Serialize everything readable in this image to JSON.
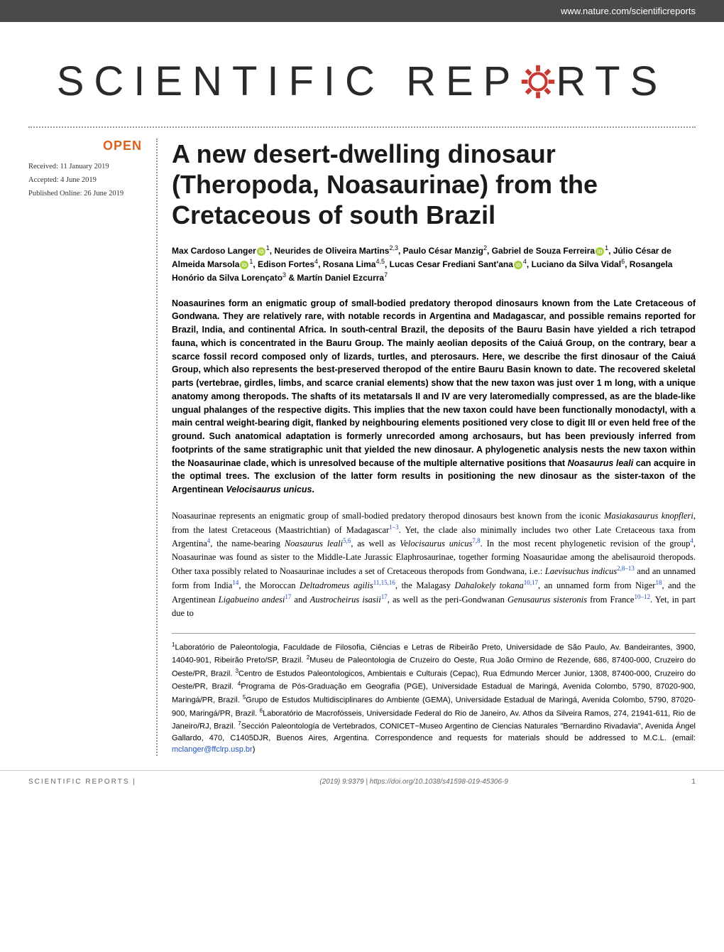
{
  "header": {
    "url": "www.nature.com/scientificreports"
  },
  "journal": {
    "name_part1": "SCIENTIFIC",
    "name_part2": "REP",
    "name_part3": "RTS",
    "gear_color": "#c73831"
  },
  "badge": {
    "open": "OPEN"
  },
  "dates": {
    "received": "Received: 11 January 2019",
    "accepted": "Accepted: 4 June 2019",
    "published": "Published Online: 26 June 2019"
  },
  "title": "A new desert-dwelling dinosaur (Theropoda, Noasaurinae) from the Cretaceous of south Brazil",
  "authors_html": "Max Cardoso Langer{orcid}<sup>1</sup>, Neurides de Oliveira Martins<sup>2,3</sup>, Paulo César Manzig<sup>2</sup>, Gabriel de Souza Ferreira{orcid}<sup>1</sup>, Júlio César de Almeida Marsola{orcid}<sup>1</sup>, Edison Fortes<sup>4</sup>, Rosana Lima<sup>4,5</sup>, Lucas Cesar Frediani Sant'ana{orcid}<sup>4</sup>, Luciano da Silva Vidal<sup>6</sup>, Rosangela Honório da Silva Lorençato<sup>3</sup> & Martín Daniel Ezcurra<sup>7</sup>",
  "abstract": "Noasaurines form an enigmatic group of small-bodied predatory theropod dinosaurs known from the Late Cretaceous of Gondwana. They are relatively rare, with notable records in Argentina and Madagascar, and possible remains reported for Brazil, India, and continental Africa. In south-central Brazil, the deposits of the Bauru Basin have yielded a rich tetrapod fauna, which is concentrated in the Bauru Group. The mainly aeolian deposits of the Caiuá Group, on the contrary, bear a scarce fossil record composed only of lizards, turtles, and pterosaurs. Here, we describe the first dinosaur of the Caiuá Group, which also represents the best-preserved theropod of the entire Bauru Basin known to date. The recovered skeletal parts (vertebrae, girdles, limbs, and scarce cranial elements) show that the new taxon was just over 1 m long, with a unique anatomy among theropods. The shafts of its metatarsals II and IV are very lateromedially compressed, as are the blade-like ungual phalanges of the respective digits. This implies that the new taxon could have been functionally monodactyl, with a main central weight-bearing digit, flanked by neighbouring elements positioned very close to digit III or even held free of the ground. Such anatomical adaptation is formerly unrecorded among archosaurs, but has been previously inferred from footprints of the same stratigraphic unit that yielded the new dinosaur. A phylogenetic analysis nests the new taxon within the Noasaurinae clade, which is unresolved because of the multiple alternative positions that <em>Noasaurus leali</em> can acquire in the optimal trees. The exclusion of the latter form results in positioning the new dinosaur as the sister-taxon of the Argentinean <em>Velocisaurus unicus</em>.",
  "intro": "Noasaurinae represents an enigmatic group of small-bodied predatory theropod dinosaurs best known from the iconic <em>Masiakasaurus knopfleri</em>, from the latest Cretaceous (Maastrichtian) of Madagascar<sup class=\"ref-link\">1–3</sup>. Yet, the clade also minimally includes two other Late Cretaceous taxa from Argentina<sup class=\"ref-link\">4</sup>, the name-bearing <em>Noasaurus leali</em><sup class=\"ref-link\">5,6</sup>, as well as <em>Velocisaurus unicus</em><sup class=\"ref-link\">7,8</sup>. In the most recent phylogenetic revision of the group<sup class=\"ref-link\">4</sup>, Noasaurinae was found as sister to the Middle-Late Jurassic Elaphrosaurinae, together forming Noasauridae among the abelisauroid theropods. Other taxa possibly related to Noasaurinae includes a set of Cretaceous theropods from Gondwana, i.e.: <em>Laevisuchus indicus</em><sup class=\"ref-link\">2,8–13</sup> and an unnamed form from India<sup class=\"ref-link\">14</sup>, the Moroccan <em>Deltadromeus agilis</em><sup class=\"ref-link\">11,15,16</sup>, the Malagasy <em>Dahalokely tokana</em><sup class=\"ref-link\">10,17</sup>, an unnamed form from Niger<sup class=\"ref-link\">18</sup>, and the Argentinean <em>Ligabueino andesi</em><sup class=\"ref-link\">17</sup> and <em>Austrocheirus isasii</em><sup class=\"ref-link\">17</sup>, as well as the peri-Gondwanan <em>Genusaurus sisteronis</em> from France<sup class=\"ref-link\">10–12</sup>. Yet, in part due to",
  "affiliations": "<sup>1</sup>Laboratório de Paleontologia, Faculdade de Filosofia, Ciências e Letras de Ribeirão Preto, Universidade de São Paulo, Av. Bandeirantes, 3900, 14040-901, Ribeirão Preto/SP, Brazil. <sup>2</sup>Museu de Paleontologia de Cruzeiro do Oeste, Rua João Ormino de Rezende, 686, 87400-000, Cruzeiro do Oeste/PR, Brazil. <sup>3</sup>Centro de Estudos Paleontologicos, Ambientais e Culturais (Cepac), Rua Edmundo Mercer Junior, 1308, 87400-000, Cruzeiro do Oeste/PR, Brazil. <sup>4</sup>Programa de Pós-Graduação em Geografia (PGE), Universidade Estadual de Maringá, Avenida Colombo, 5790, 87020-900, Maringá/PR, Brazil. <sup>5</sup>Grupo de Estudos Multidisciplinares do Ambiente (GEMA), Universidade Estadual de Maringá, Avenida Colombo, 5790, 87020-900, Maringá/PR, Brazil. <sup>6</sup>Laboratório de Macrofósseis, Universidade Federal do Rio de Janeiro, Av. Athos da Silveira Ramos, 274, 21941-611, Rio de Janeiro/RJ, Brazil. <sup>7</sup>Sección Paleontología de Vertebrados, CONICET−Museo Argentino de Ciencias Naturales \"Bernardino Rivadavia\", Avenida Ángel Gallardo, 470, C1405DJR, Buenos Aires, Argentina. Correspondence and requests for materials should be addressed to M.C.L. (email: <span class=\"email-link\">mclanger@ffclrp.usp.br</span>)",
  "footer": {
    "journal": "SCIENTIFIC REPORTS |",
    "citation": "(2019) 9:9379 | https://doi.org/10.1038/s41598-019-45306-9",
    "page": "1"
  },
  "colors": {
    "header_bg": "#4a4a4a",
    "open_badge": "#d9631e",
    "gear": "#c73831",
    "orcid": "#a6ce39",
    "link": "#2050c0"
  }
}
